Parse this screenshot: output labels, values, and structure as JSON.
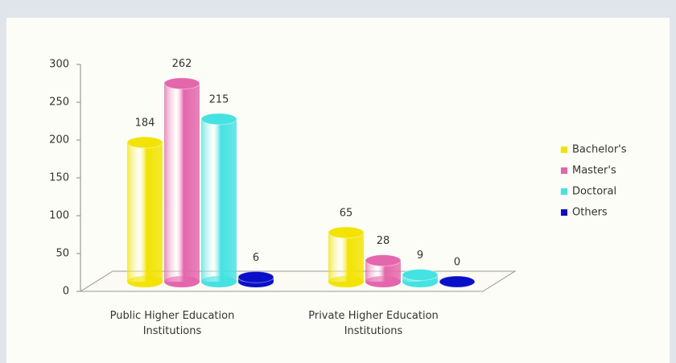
{
  "chart_data": {
    "type": "bar3d",
    "categories": [
      "Public Higher Education Institutions",
      "Private Higher Education Institutions"
    ],
    "series": [
      {
        "name": "Bachelor's",
        "color": "#f2e400",
        "values": [
          184,
          65
        ]
      },
      {
        "name": "Master's",
        "color": "#e466ac",
        "values": [
          262,
          28
        ]
      },
      {
        "name": "Doctoral",
        "color": "#45e2e2",
        "values": [
          215,
          9
        ]
      },
      {
        "name": "Others",
        "color": "#0a10c8",
        "values": [
          6,
          0
        ]
      }
    ],
    "ylim": [
      0,
      300
    ],
    "yticks": [
      0,
      50,
      100,
      150,
      200,
      250,
      300
    ],
    "legend": "right"
  }
}
